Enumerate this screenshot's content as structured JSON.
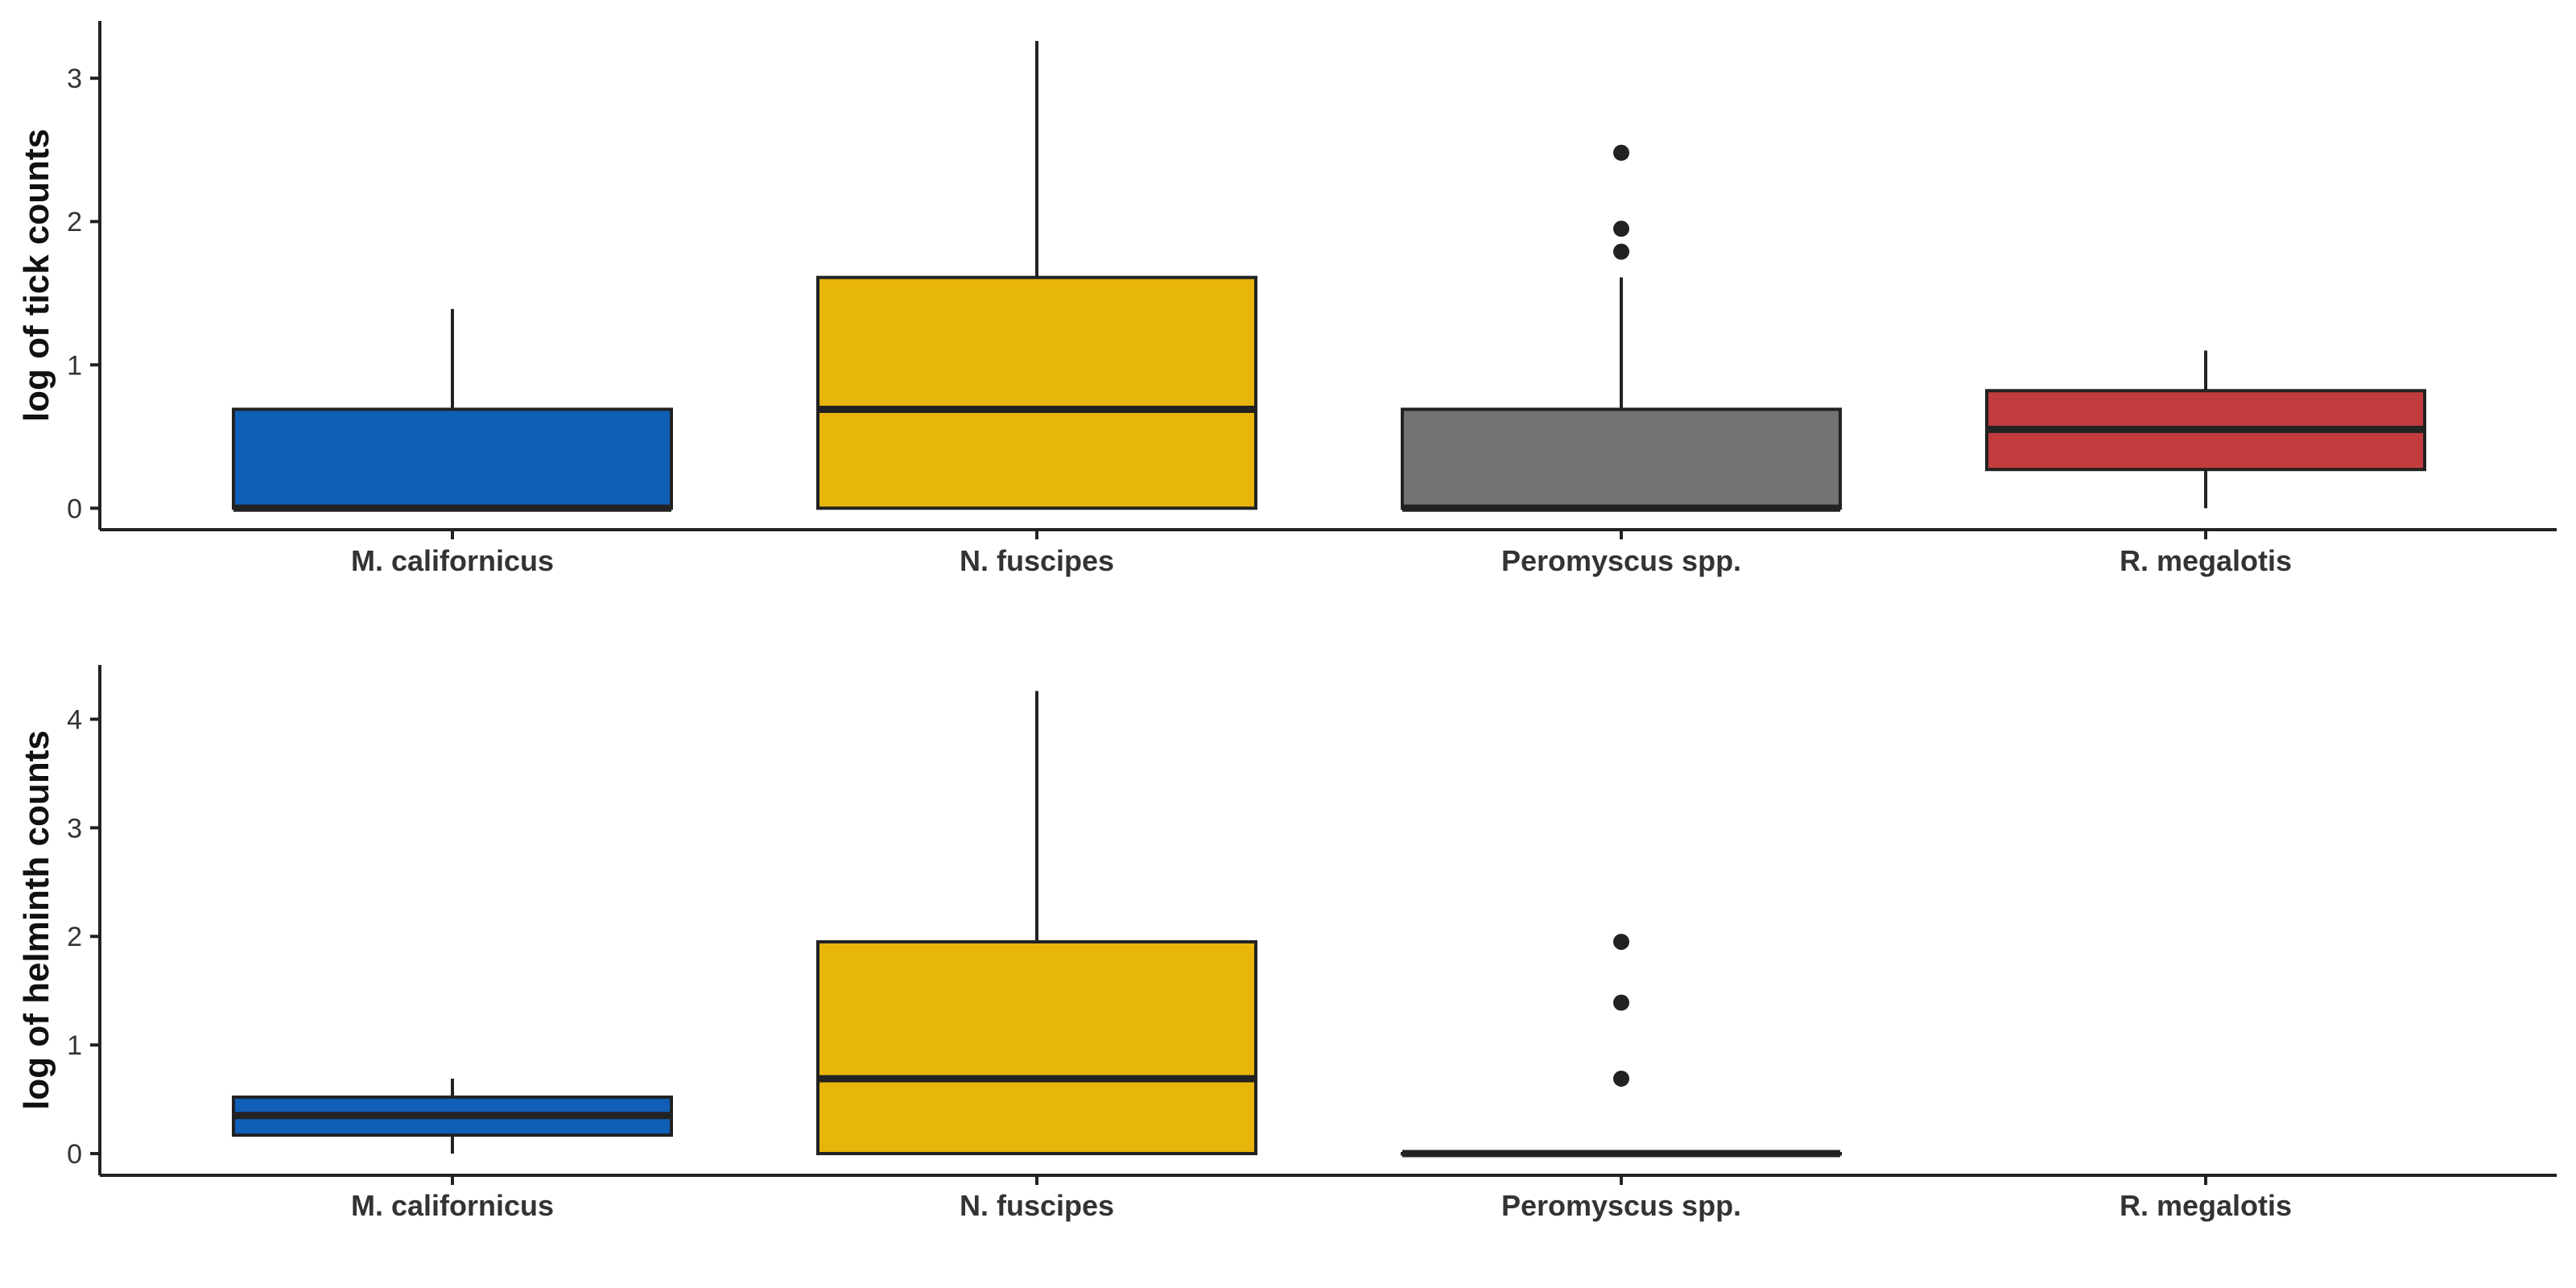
{
  "colors": {
    "M. californicus": "#0F5FB7",
    "N. fuscipes": "#E8B50B",
    "Peromyscus spp.": "#737373",
    "R. megalotis": "#C23C3E",
    "outline": "#222222"
  },
  "chart_data": [
    {
      "type": "box",
      "ylabel": "log of tick counts",
      "xlabel": "",
      "categories": [
        "M. californicus",
        "N. fuscipes",
        "Peromyscus spp.",
        "R. megalotis"
      ],
      "ylim": [
        -0.15,
        3.4
      ],
      "yticks": [
        0,
        1,
        2,
        3
      ],
      "grid": false,
      "boxes": [
        {
          "category": "M. californicus",
          "min": 0,
          "q1": 0,
          "median": 0,
          "q3": 0.69,
          "max": 1.39,
          "outliers": []
        },
        {
          "category": "N. fuscipes",
          "min": 0,
          "q1": 0,
          "median": 0.69,
          "q3": 1.61,
          "max": 3.26,
          "outliers": []
        },
        {
          "category": "Peromyscus spp.",
          "min": 0,
          "q1": 0,
          "median": 0,
          "q3": 0.69,
          "max": 1.61,
          "outliers": [
            1.79,
            1.95,
            2.48
          ]
        },
        {
          "category": "R. megalotis",
          "min": 0,
          "q1": 0.27,
          "median": 0.55,
          "q3": 0.82,
          "max": 1.1,
          "outliers": []
        }
      ]
    },
    {
      "type": "box",
      "ylabel": "log of helminth counts",
      "xlabel": "",
      "categories": [
        "M. californicus",
        "N. fuscipes",
        "Peromyscus spp.",
        "R. megalotis"
      ],
      "ylim": [
        -0.2,
        4.5
      ],
      "yticks": [
        0,
        1,
        2,
        3,
        4
      ],
      "grid": false,
      "boxes": [
        {
          "category": "M. californicus",
          "min": 0,
          "q1": 0.17,
          "median": 0.35,
          "q3": 0.52,
          "max": 0.69,
          "outliers": []
        },
        {
          "category": "N. fuscipes",
          "min": 0,
          "q1": 0,
          "median": 0.69,
          "q3": 1.95,
          "max": 4.26,
          "outliers": []
        },
        {
          "category": "Peromyscus spp.",
          "min": 0,
          "q1": 0,
          "median": 0,
          "q3": 0,
          "max": 0,
          "outliers": [
            0.69,
            1.39,
            1.95
          ]
        }
      ]
    }
  ]
}
